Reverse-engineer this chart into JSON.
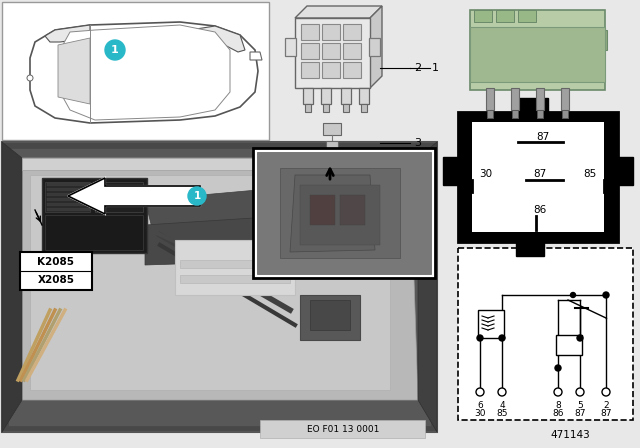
{
  "bg_color": "#e8e8e8",
  "white": "#ffffff",
  "black": "#000000",
  "cyan_circle": "#29b8c8",
  "green_relay_top": "#b8cca8",
  "green_relay_body": "#a8bc98",
  "part_number": "471143",
  "eo_code": "EO F01 13 0001",
  "pin_labels_top": [
    "6",
    "4",
    "8",
    "5",
    "2"
  ],
  "pin_labels_bottom": [
    "30",
    "85",
    "86",
    "87",
    "87"
  ],
  "photo_bg": "#707070",
  "photo_tray": "#c0c0c0",
  "photo_dark": "#282828",
  "inset_bg": "#909090",
  "top_panel_bg": "#f5f5f5",
  "border_color": "#aaaaaa"
}
